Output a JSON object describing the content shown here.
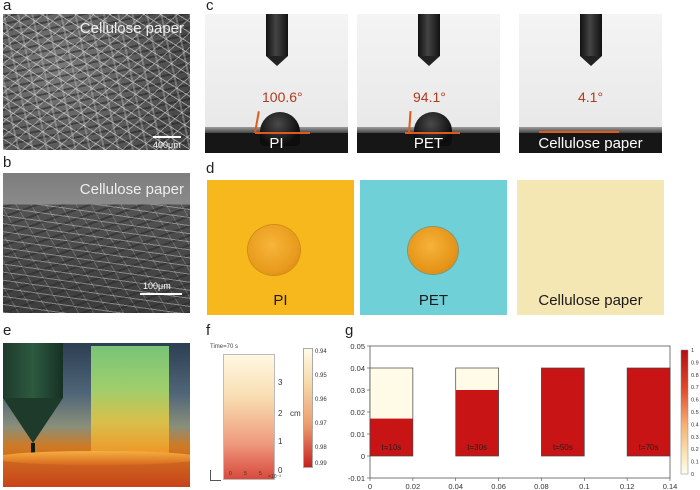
{
  "panels": {
    "a": {
      "label": "a",
      "title": "Cellulose paper",
      "scale": "400μm"
    },
    "b": {
      "label": "b",
      "title": "Cellulose paper",
      "scale": "100μm"
    },
    "c": {
      "label": "c",
      "items": [
        {
          "material": "PI",
          "angle": "100.6°"
        },
        {
          "material": "PET",
          "angle": "94.1°"
        },
        {
          "material": "Cellulose paper",
          "angle": "4.1°"
        }
      ]
    },
    "d": {
      "label": "d",
      "items": [
        {
          "material": "PI",
          "color": "#f6b81d"
        },
        {
          "material": "PET",
          "color": "#6fd0d8"
        },
        {
          "material": "Cellulose paper",
          "color": "#f5e7b4"
        }
      ]
    },
    "e": {
      "label": "e"
    },
    "f": {
      "label": "f",
      "time": "Time=70 s",
      "axis_ticks": [
        "3",
        "2",
        "1",
        "0"
      ],
      "axis_unit": "cm",
      "colorbar_ticks": [
        "0.94",
        "0.95",
        "0.96",
        "0.97",
        "0.98",
        "0.99"
      ],
      "x_ticks": [
        "0",
        "5",
        "5"
      ],
      "x_unit": "×10⁻³"
    },
    "g": {
      "label": "g",
      "y_ticks": [
        "0.05",
        "0.04",
        "0.03",
        "0.02",
        "0.01",
        "0",
        "-0.01"
      ],
      "x_ticks": [
        "0",
        "0.02",
        "0.04",
        "0.06",
        "0.08",
        "0.1",
        "0.12",
        "0.14"
      ],
      "colorbar_ticks": [
        "1",
        "0.9",
        "0.8",
        "0.7",
        "0.6",
        "0.5",
        "0.4",
        "0.3",
        "0.2",
        "0.1",
        "0"
      ]
    }
  },
  "chart_data": {
    "type": "heatmap",
    "xlim": [
      0,
      0.14
    ],
    "ylim": [
      -0.01,
      0.05
    ],
    "strip_height": 0.04,
    "snapshots": [
      {
        "label": "t=10s",
        "x_range": [
          0,
          0.02
        ],
        "wet_front": 0.017
      },
      {
        "label": "t=30s",
        "x_range": [
          0.04,
          0.06
        ],
        "wet_front": 0.03
      },
      {
        "label": "t=50s",
        "x_range": [
          0.08,
          0.1
        ],
        "wet_front": 0.04
      },
      {
        "label": "t=70s",
        "x_range": [
          0.12,
          0.14
        ],
        "wet_front": 0.04
      }
    ]
  },
  "colors": {
    "wet": "#c81414",
    "dry": "#fffbe6",
    "angle_text": "#b03a1f"
  }
}
